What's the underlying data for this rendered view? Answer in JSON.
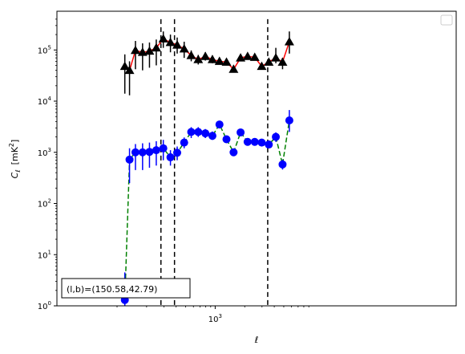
{
  "chart_data": {
    "type": "scatter",
    "title": "",
    "xlabel": "ℓ",
    "ylabel_base": "C",
    "ylabel_sub": "ℓ",
    "ylabel_unit_prefix": "[mK",
    "ylabel_unit_exp": "2",
    "ylabel_unit_suffix": "]",
    "xscale": "log",
    "yscale": "log",
    "xlim": [
      100,
      5000
    ],
    "ylim": [
      1,
      400000
    ],
    "x_ticks": [
      {
        "value": 1000,
        "base": "10",
        "exp": "3"
      }
    ],
    "y_ticks": [
      {
        "value": 1,
        "base": "10",
        "exp": "0"
      },
      {
        "value": 10,
        "base": "10",
        "exp": "1"
      },
      {
        "value": 100,
        "base": "10",
        "exp": "2"
      },
      {
        "value": 1000,
        "base": "10",
        "exp": "3"
      },
      {
        "value": 10000,
        "base": "10",
        "exp": "4"
      },
      {
        "value": 100000,
        "base": "10",
        "exp": "5"
      }
    ],
    "vlines": [
      280,
      385,
      3430
    ],
    "annotation": "(l,b)=(150.58,42.79)",
    "legend": {
      "placement": "upper right",
      "entries": []
    },
    "grid": false,
    "series": [
      {
        "marker": "triangle",
        "marker_color": "#000000",
        "line_color": "#ff0000",
        "line_style": "solid",
        "points": [
          {
            "x": 120,
            "y": 48000,
            "lo": 14000,
            "hi": 82000
          },
          {
            "x": 134,
            "y": 40000,
            "lo": 13000,
            "hi": 60000
          },
          {
            "x": 154,
            "y": 98000,
            "lo": 42000,
            "hi": 150000
          },
          {
            "x": 182,
            "y": 90000,
            "lo": 40000,
            "hi": 135000
          },
          {
            "x": 214,
            "y": 95000,
            "lo": 45000,
            "hi": 140000
          },
          {
            "x": 251,
            "y": 110000,
            "lo": 50000,
            "hi": 160000
          },
          {
            "x": 296,
            "y": 165000,
            "lo": 110000,
            "hi": 230000
          },
          {
            "x": 350,
            "y": 140000,
            "lo": 90000,
            "hi": 200000
          },
          {
            "x": 410,
            "y": 125000,
            "lo": 85000,
            "hi": 175000
          },
          {
            "x": 483,
            "y": 105000,
            "lo": 70000,
            "hi": 145000
          },
          {
            "x": 570,
            "y": 78000,
            "lo": 60000,
            "hi": 98000
          },
          {
            "x": 672,
            "y": 65000,
            "lo": 52000,
            "hi": 80000
          },
          {
            "x": 794,
            "y": 75000,
            "lo": 62000,
            "hi": 90000
          },
          {
            "x": 937,
            "y": 65000,
            "lo": 55000,
            "hi": 78000
          },
          {
            "x": 1106,
            "y": 60000,
            "lo": 52000,
            "hi": 70000
          },
          {
            "x": 1304,
            "y": 58000,
            "lo": 50000,
            "hi": 67000
          },
          {
            "x": 1540,
            "y": 42000,
            "lo": 37000,
            "hi": 48000
          },
          {
            "x": 1815,
            "y": 70000,
            "lo": 62000,
            "hi": 80000
          },
          {
            "x": 2140,
            "y": 75000,
            "lo": 67000,
            "hi": 84000
          },
          {
            "x": 2530,
            "y": 72000,
            "lo": 64000,
            "hi": 80000
          },
          {
            "x": 2980,
            "y": 48000,
            "lo": 43000,
            "hi": 54000
          },
          {
            "x": 3520,
            "y": 58000,
            "lo": 52000,
            "hi": 65000
          },
          {
            "x": 4150,
            "y": 70000,
            "lo": 55000,
            "hi": 110000
          },
          {
            "x": 4860,
            "y": 58000,
            "lo": 42000,
            "hi": 70000
          },
          {
            "x": 5700,
            "y": 145000,
            "lo": 85000,
            "hi": 230000
          }
        ]
      },
      {
        "marker": "circle",
        "marker_color": "#0000ff",
        "line_color": "#008000",
        "line_style": "dashed",
        "points": [
          {
            "x": 120,
            "y": 1.3,
            "lo": 1,
            "hi": 4.5
          },
          {
            "x": 134,
            "y": 720,
            "lo": 250,
            "hi": 1200
          },
          {
            "x": 154,
            "y": 1000,
            "lo": 450,
            "hi": 1450
          },
          {
            "x": 182,
            "y": 1000,
            "lo": 450,
            "hi": 1500
          },
          {
            "x": 214,
            "y": 1020,
            "lo": 500,
            "hi": 1550
          },
          {
            "x": 251,
            "y": 1100,
            "lo": 550,
            "hi": 1650
          },
          {
            "x": 296,
            "y": 1200,
            "lo": 700,
            "hi": 1750
          },
          {
            "x": 350,
            "y": 800,
            "lo": 550,
            "hi": 1100
          },
          {
            "x": 410,
            "y": 980,
            "lo": 700,
            "hi": 1300
          },
          {
            "x": 483,
            "y": 1550,
            "lo": 1200,
            "hi": 1950
          },
          {
            "x": 570,
            "y": 2500,
            "lo": 1900,
            "hi": 3100
          },
          {
            "x": 672,
            "y": 2500,
            "lo": 2000,
            "hi": 3100
          },
          {
            "x": 794,
            "y": 2350,
            "lo": 1900,
            "hi": 2850
          },
          {
            "x": 937,
            "y": 2100,
            "lo": 1750,
            "hi": 2550
          },
          {
            "x": 1106,
            "y": 3500,
            "lo": 3100,
            "hi": 4000
          },
          {
            "x": 1304,
            "y": 1800,
            "lo": 1600,
            "hi": 2050
          },
          {
            "x": 1540,
            "y": 1000,
            "lo": 870,
            "hi": 1150
          },
          {
            "x": 1815,
            "y": 2450,
            "lo": 2200,
            "hi": 2700
          },
          {
            "x": 2140,
            "y": 1600,
            "lo": 1450,
            "hi": 1750
          },
          {
            "x": 2530,
            "y": 1600,
            "lo": 1470,
            "hi": 1750
          },
          {
            "x": 2980,
            "y": 1550,
            "lo": 1420,
            "hi": 1700
          },
          {
            "x": 3520,
            "y": 1420,
            "lo": 1300,
            "hi": 1550
          },
          {
            "x": 4150,
            "y": 2000,
            "lo": 1600,
            "hi": 2450
          },
          {
            "x": 4860,
            "y": 580,
            "lo": 460,
            "hi": 720
          },
          {
            "x": 5700,
            "y": 4200,
            "lo": 2500,
            "hi": 6700
          }
        ]
      }
    ]
  }
}
